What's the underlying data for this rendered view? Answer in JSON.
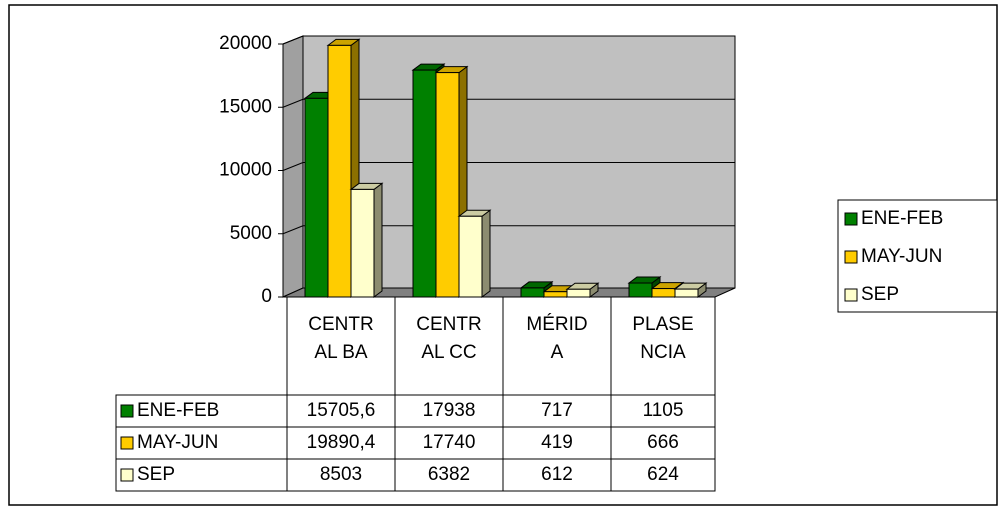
{
  "chart_data": {
    "type": "bar3d",
    "categories": [
      "CENTRAL BA",
      "CENTRAL CC",
      "MÉRIDA",
      "PLASENCIA"
    ],
    "series": [
      {
        "name": "ENE-FEB",
        "color": "#008000",
        "values": [
          15705.6,
          17938,
          717,
          1105
        ],
        "value_labels": [
          "15705,6",
          "17938",
          "717",
          "1105"
        ]
      },
      {
        "name": "MAY-JUN",
        "color": "#ffcc00",
        "values": [
          19890.4,
          17740,
          419,
          666
        ],
        "value_labels": [
          "19890,4",
          "17740",
          "419",
          "666"
        ]
      },
      {
        "name": "SEP",
        "color": "#ffffcc",
        "values": [
          8503,
          6382,
          612,
          624
        ],
        "value_labels": [
          "8503",
          "6382",
          "612",
          "624"
        ]
      }
    ],
    "ylim": [
      0,
      20000
    ],
    "yticks": [
      0,
      5000,
      10000,
      15000,
      20000
    ],
    "grid": true,
    "legend": "right"
  }
}
